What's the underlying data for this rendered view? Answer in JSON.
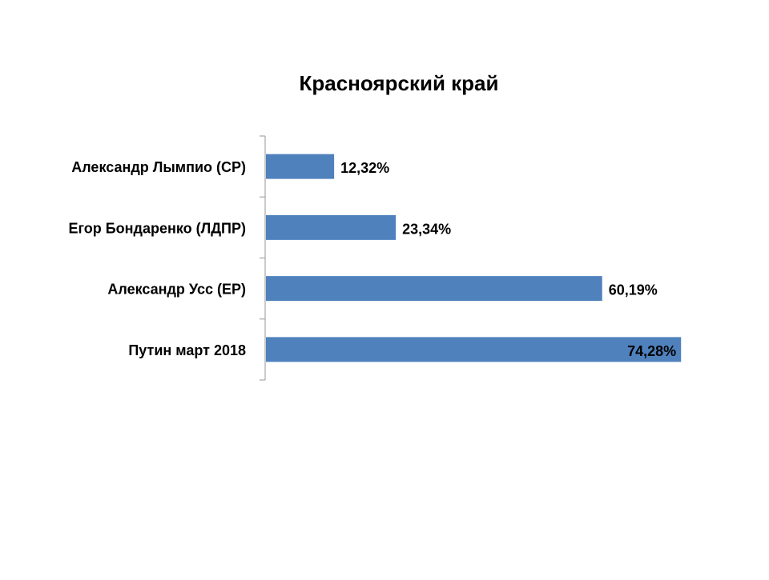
{
  "chart_data": {
    "type": "bar",
    "orientation": "horizontal",
    "title": "Красноярский край",
    "categories": [
      "Александр Лымпио (СР)",
      "Егор Бондаренко (ЛДПР)",
      "Александр Усс (ЕР)",
      "Путин март 2018"
    ],
    "values": [
      12.32,
      23.34,
      60.19,
      74.28
    ],
    "value_labels": [
      "12,32%",
      "23,34%",
      "60,19%",
      "74,28%"
    ],
    "xlim": [
      0,
      100
    ],
    "unit": "%",
    "grid": false,
    "legend": "none",
    "bar_color": "#4f81bd",
    "axis_color": "#a6a6a6"
  }
}
